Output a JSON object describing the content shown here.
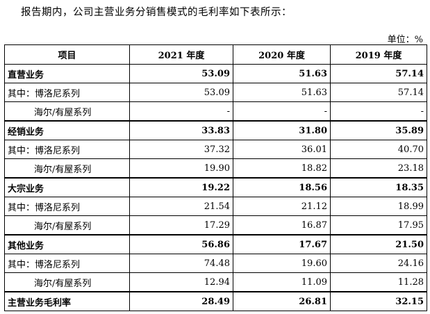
{
  "intro": "报告期内，公司主营业务分销售模式的毛利率如下表所示：",
  "unit": "单位：%",
  "table": {
    "headers": [
      "项目",
      "2021 年度",
      "2020 年度",
      "2019 年度"
    ],
    "rows": [
      {
        "label": "直营业务",
        "values": [
          "53.09",
          "51.63",
          "57.14"
        ],
        "bold": true,
        "indent": false
      },
      {
        "label": "其中：博洛尼系列",
        "values": [
          "53.09",
          "51.63",
          "57.14"
        ],
        "bold": false,
        "indent": false
      },
      {
        "label": "海尔/有屋系列",
        "values": [
          "-",
          "-",
          "-"
        ],
        "bold": false,
        "indent": true
      },
      {
        "label": "经销业务",
        "values": [
          "33.83",
          "31.80",
          "35.89"
        ],
        "bold": true,
        "indent": false
      },
      {
        "label": "其中：博洛尼系列",
        "values": [
          "37.32",
          "36.01",
          "40.70"
        ],
        "bold": false,
        "indent": false
      },
      {
        "label": "海尔/有屋系列",
        "values": [
          "19.90",
          "18.82",
          "23.18"
        ],
        "bold": false,
        "indent": true
      },
      {
        "label": "大宗业务",
        "values": [
          "19.22",
          "18.56",
          "18.35"
        ],
        "bold": true,
        "indent": false
      },
      {
        "label": "其中：博洛尼系列",
        "values": [
          "21.54",
          "21.12",
          "18.99"
        ],
        "bold": false,
        "indent": false
      },
      {
        "label": "海尔/有屋系列",
        "values": [
          "17.29",
          "16.87",
          "17.95"
        ],
        "bold": false,
        "indent": true
      },
      {
        "label": "其他业务",
        "values": [
          "56.86",
          "17.67",
          "21.50"
        ],
        "bold": true,
        "indent": false
      },
      {
        "label": "其中：博洛尼系列",
        "values": [
          "74.48",
          "19.60",
          "24.16"
        ],
        "bold": false,
        "indent": false
      },
      {
        "label": "海尔/有屋系列",
        "values": [
          "12.94",
          "11.09",
          "11.28"
        ],
        "bold": false,
        "indent": true
      },
      {
        "label": "主营业务毛利率",
        "values": [
          "28.49",
          "26.81",
          "32.15"
        ],
        "bold": true,
        "indent": false
      }
    ]
  }
}
